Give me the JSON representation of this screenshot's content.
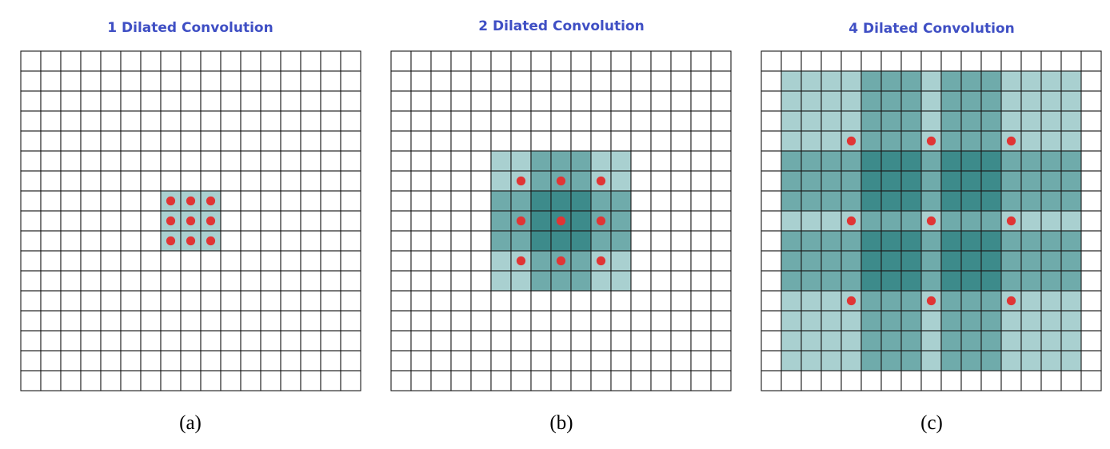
{
  "colors": {
    "title": "#3f4fc4",
    "caption": "#000000",
    "grid_line": "#1a1a1a",
    "dot": "#e03535",
    "shade": [
      "#ffffff",
      "#a9d0d0",
      "#6fabab",
      "#3d8b8b"
    ]
  },
  "grid": {
    "rows": 17,
    "cols": 17
  },
  "panels": [
    {
      "title": "1 Dilated Convolution",
      "caption": "(a)",
      "dilation": 1,
      "dots": [
        [
          7,
          7
        ],
        [
          7,
          8
        ],
        [
          7,
          9
        ],
        [
          8,
          7
        ],
        [
          8,
          8
        ],
        [
          8,
          9
        ],
        [
          9,
          7
        ],
        [
          9,
          8
        ],
        [
          9,
          9
        ]
      ],
      "shade_levels": [
        [
          0,
          0,
          0,
          0,
          0,
          0,
          0,
          0,
          0,
          0,
          0,
          0,
          0,
          0,
          0,
          0,
          0
        ],
        [
          0,
          0,
          0,
          0,
          0,
          0,
          0,
          0,
          0,
          0,
          0,
          0,
          0,
          0,
          0,
          0,
          0
        ],
        [
          0,
          0,
          0,
          0,
          0,
          0,
          0,
          0,
          0,
          0,
          0,
          0,
          0,
          0,
          0,
          0,
          0
        ],
        [
          0,
          0,
          0,
          0,
          0,
          0,
          0,
          0,
          0,
          0,
          0,
          0,
          0,
          0,
          0,
          0,
          0
        ],
        [
          0,
          0,
          0,
          0,
          0,
          0,
          0,
          0,
          0,
          0,
          0,
          0,
          0,
          0,
          0,
          0,
          0
        ],
        [
          0,
          0,
          0,
          0,
          0,
          0,
          0,
          0,
          0,
          0,
          0,
          0,
          0,
          0,
          0,
          0,
          0
        ],
        [
          0,
          0,
          0,
          0,
          0,
          0,
          0,
          0,
          0,
          0,
          0,
          0,
          0,
          0,
          0,
          0,
          0
        ],
        [
          0,
          0,
          0,
          0,
          0,
          0,
          0,
          1,
          1,
          1,
          0,
          0,
          0,
          0,
          0,
          0,
          0
        ],
        [
          0,
          0,
          0,
          0,
          0,
          0,
          0,
          1,
          1,
          1,
          0,
          0,
          0,
          0,
          0,
          0,
          0
        ],
        [
          0,
          0,
          0,
          0,
          0,
          0,
          0,
          1,
          1,
          1,
          0,
          0,
          0,
          0,
          0,
          0,
          0
        ],
        [
          0,
          0,
          0,
          0,
          0,
          0,
          0,
          0,
          0,
          0,
          0,
          0,
          0,
          0,
          0,
          0,
          0
        ],
        [
          0,
          0,
          0,
          0,
          0,
          0,
          0,
          0,
          0,
          0,
          0,
          0,
          0,
          0,
          0,
          0,
          0
        ],
        [
          0,
          0,
          0,
          0,
          0,
          0,
          0,
          0,
          0,
          0,
          0,
          0,
          0,
          0,
          0,
          0,
          0
        ],
        [
          0,
          0,
          0,
          0,
          0,
          0,
          0,
          0,
          0,
          0,
          0,
          0,
          0,
          0,
          0,
          0,
          0
        ],
        [
          0,
          0,
          0,
          0,
          0,
          0,
          0,
          0,
          0,
          0,
          0,
          0,
          0,
          0,
          0,
          0,
          0
        ],
        [
          0,
          0,
          0,
          0,
          0,
          0,
          0,
          0,
          0,
          0,
          0,
          0,
          0,
          0,
          0,
          0,
          0
        ],
        [
          0,
          0,
          0,
          0,
          0,
          0,
          0,
          0,
          0,
          0,
          0,
          0,
          0,
          0,
          0,
          0,
          0
        ]
      ]
    },
    {
      "title": "2 Dilated Convolution",
      "caption": "(b)",
      "dilation": 2,
      "dots": [
        [
          6,
          6
        ],
        [
          6,
          8
        ],
        [
          6,
          10
        ],
        [
          8,
          6
        ],
        [
          8,
          8
        ],
        [
          8,
          10
        ],
        [
          10,
          6
        ],
        [
          10,
          8
        ],
        [
          10,
          10
        ]
      ],
      "shade_levels": [
        [
          0,
          0,
          0,
          0,
          0,
          0,
          0,
          0,
          0,
          0,
          0,
          0,
          0,
          0,
          0,
          0,
          0
        ],
        [
          0,
          0,
          0,
          0,
          0,
          0,
          0,
          0,
          0,
          0,
          0,
          0,
          0,
          0,
          0,
          0,
          0
        ],
        [
          0,
          0,
          0,
          0,
          0,
          0,
          0,
          0,
          0,
          0,
          0,
          0,
          0,
          0,
          0,
          0,
          0
        ],
        [
          0,
          0,
          0,
          0,
          0,
          0,
          0,
          0,
          0,
          0,
          0,
          0,
          0,
          0,
          0,
          0,
          0
        ],
        [
          0,
          0,
          0,
          0,
          0,
          0,
          0,
          0,
          0,
          0,
          0,
          0,
          0,
          0,
          0,
          0,
          0
        ],
        [
          0,
          0,
          0,
          0,
          0,
          1,
          1,
          2,
          2,
          2,
          1,
          1,
          0,
          0,
          0,
          0,
          0
        ],
        [
          0,
          0,
          0,
          0,
          0,
          1,
          1,
          2,
          2,
          2,
          1,
          1,
          0,
          0,
          0,
          0,
          0
        ],
        [
          0,
          0,
          0,
          0,
          0,
          2,
          2,
          3,
          3,
          3,
          2,
          2,
          0,
          0,
          0,
          0,
          0
        ],
        [
          0,
          0,
          0,
          0,
          0,
          2,
          2,
          3,
          3,
          3,
          2,
          2,
          0,
          0,
          0,
          0,
          0
        ],
        [
          0,
          0,
          0,
          0,
          0,
          2,
          2,
          3,
          3,
          3,
          2,
          2,
          0,
          0,
          0,
          0,
          0
        ],
        [
          0,
          0,
          0,
          0,
          0,
          1,
          1,
          2,
          2,
          2,
          1,
          1,
          0,
          0,
          0,
          0,
          0
        ],
        [
          0,
          0,
          0,
          0,
          0,
          1,
          1,
          2,
          2,
          2,
          1,
          1,
          0,
          0,
          0,
          0,
          0
        ],
        [
          0,
          0,
          0,
          0,
          0,
          0,
          0,
          0,
          0,
          0,
          0,
          0,
          0,
          0,
          0,
          0,
          0
        ],
        [
          0,
          0,
          0,
          0,
          0,
          0,
          0,
          0,
          0,
          0,
          0,
          0,
          0,
          0,
          0,
          0,
          0
        ],
        [
          0,
          0,
          0,
          0,
          0,
          0,
          0,
          0,
          0,
          0,
          0,
          0,
          0,
          0,
          0,
          0,
          0
        ],
        [
          0,
          0,
          0,
          0,
          0,
          0,
          0,
          0,
          0,
          0,
          0,
          0,
          0,
          0,
          0,
          0,
          0
        ],
        [
          0,
          0,
          0,
          0,
          0,
          0,
          0,
          0,
          0,
          0,
          0,
          0,
          0,
          0,
          0,
          0,
          0
        ]
      ]
    },
    {
      "title": "4 Dilated Convolution",
      "caption": "(c)",
      "dilation": 4,
      "dots": [
        [
          4,
          4
        ],
        [
          4,
          8
        ],
        [
          4,
          12
        ],
        [
          8,
          4
        ],
        [
          8,
          8
        ],
        [
          8,
          12
        ],
        [
          12,
          4
        ],
        [
          12,
          8
        ],
        [
          12,
          12
        ]
      ],
      "shade_levels": [
        [
          0,
          0,
          0,
          0,
          0,
          0,
          0,
          0,
          0,
          0,
          0,
          0,
          0,
          0,
          0,
          0,
          0
        ],
        [
          0,
          1,
          1,
          1,
          1,
          2,
          2,
          2,
          1,
          2,
          2,
          2,
          1,
          1,
          1,
          1,
          0
        ],
        [
          0,
          1,
          1,
          1,
          1,
          2,
          2,
          2,
          1,
          2,
          2,
          2,
          1,
          1,
          1,
          1,
          0
        ],
        [
          0,
          1,
          1,
          1,
          1,
          2,
          2,
          2,
          1,
          2,
          2,
          2,
          1,
          1,
          1,
          1,
          0
        ],
        [
          0,
          1,
          1,
          1,
          1,
          2,
          2,
          2,
          1,
          2,
          2,
          2,
          1,
          1,
          1,
          1,
          0
        ],
        [
          0,
          2,
          2,
          2,
          2,
          3,
          3,
          3,
          2,
          3,
          3,
          3,
          2,
          2,
          2,
          2,
          0
        ],
        [
          0,
          2,
          2,
          2,
          2,
          3,
          3,
          3,
          2,
          3,
          3,
          3,
          2,
          2,
          2,
          2,
          0
        ],
        [
          0,
          2,
          2,
          2,
          2,
          3,
          3,
          3,
          2,
          3,
          3,
          3,
          2,
          2,
          2,
          2,
          0
        ],
        [
          0,
          1,
          1,
          1,
          1,
          2,
          2,
          2,
          1,
          2,
          2,
          2,
          1,
          1,
          1,
          1,
          0
        ],
        [
          0,
          2,
          2,
          2,
          2,
          3,
          3,
          3,
          2,
          3,
          3,
          3,
          2,
          2,
          2,
          2,
          0
        ],
        [
          0,
          2,
          2,
          2,
          2,
          3,
          3,
          3,
          2,
          3,
          3,
          3,
          2,
          2,
          2,
          2,
          0
        ],
        [
          0,
          2,
          2,
          2,
          2,
          3,
          3,
          3,
          2,
          3,
          3,
          3,
          2,
          2,
          2,
          2,
          0
        ],
        [
          0,
          1,
          1,
          1,
          1,
          2,
          2,
          2,
          1,
          2,
          2,
          2,
          1,
          1,
          1,
          1,
          0
        ],
        [
          0,
          1,
          1,
          1,
          1,
          2,
          2,
          2,
          1,
          2,
          2,
          2,
          1,
          1,
          1,
          1,
          0
        ],
        [
          0,
          1,
          1,
          1,
          1,
          2,
          2,
          2,
          1,
          2,
          2,
          2,
          1,
          1,
          1,
          1,
          0
        ],
        [
          0,
          1,
          1,
          1,
          1,
          2,
          2,
          2,
          1,
          2,
          2,
          2,
          1,
          1,
          1,
          1,
          0
        ],
        [
          0,
          0,
          0,
          0,
          0,
          0,
          0,
          0,
          0,
          0,
          0,
          0,
          0,
          0,
          0,
          0,
          0
        ]
      ]
    }
  ]
}
